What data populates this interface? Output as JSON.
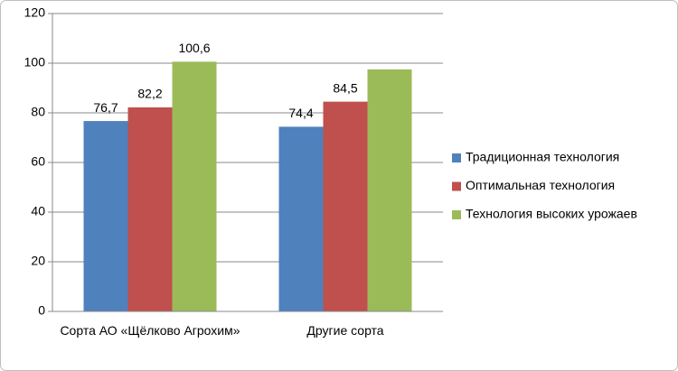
{
  "chart_data": {
    "type": "bar",
    "categories": [
      "Сорта АО «Щёлково Агрохим»",
      "Другие сорта"
    ],
    "series": [
      {
        "name": "Традиционная технология",
        "color": "#4f81bd",
        "values": [
          76.7,
          74.4
        ],
        "value_labels": [
          "76,7",
          "74,4"
        ]
      },
      {
        "name": "Оптимальная технология",
        "color": "#c0504d",
        "values": [
          82.2,
          84.5
        ],
        "value_labels": [
          "82,2",
          "84,5"
        ]
      },
      {
        "name": "Технология высоких урожаев",
        "color": "#9bbb59",
        "values": [
          100.6,
          97.5
        ],
        "value_labels": [
          "100,6",
          null
        ]
      }
    ],
    "ylim": [
      0,
      120
    ],
    "yticks": [
      0,
      20,
      40,
      60,
      80,
      100,
      120
    ],
    "grid": true,
    "legend": "right"
  }
}
